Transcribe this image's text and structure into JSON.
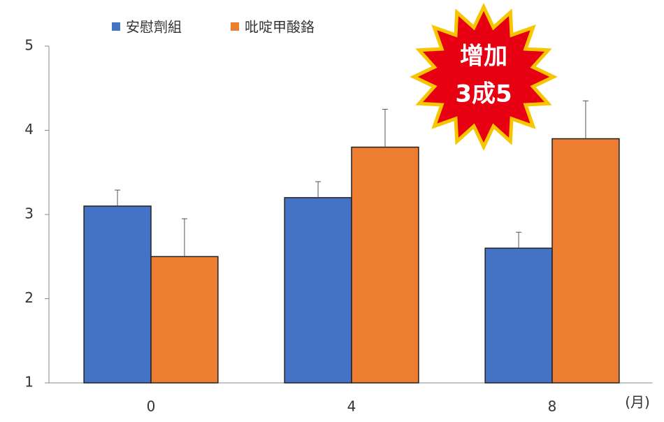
{
  "chart_data": {
    "type": "bar",
    "categories": [
      "0",
      "4",
      "8"
    ],
    "x_unit_label": "(月)",
    "series": [
      {
        "name": "安慰劑組",
        "color": "#4472c4",
        "values": [
          3.1,
          3.2,
          2.6
        ],
        "errors": [
          0.19,
          0.19,
          0.19
        ]
      },
      {
        "name": "吡啶甲酸鉻",
        "color": "#ed7d31",
        "values": [
          2.5,
          3.8,
          3.9
        ],
        "errors": [
          0.45,
          0.45,
          0.45
        ]
      }
    ],
    "ylim": [
      1,
      5
    ],
    "yticks": [
      1,
      2,
      3,
      4,
      5
    ],
    "annotation": [
      "增加",
      "3成5"
    ]
  }
}
